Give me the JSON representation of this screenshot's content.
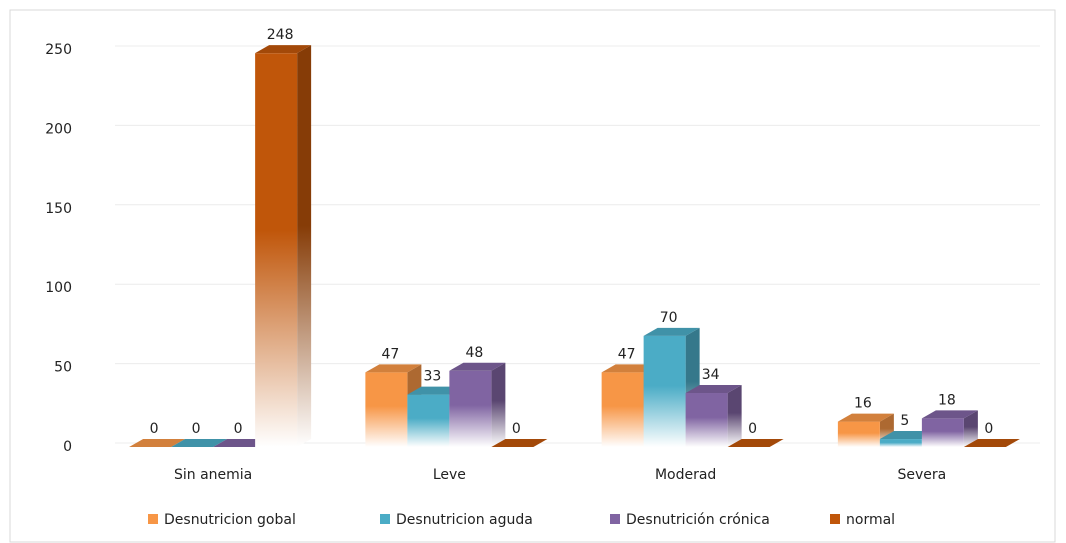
{
  "chart_data": {
    "type": "bar3d",
    "categories": [
      "Sin anemia",
      "Leve",
      "Moderad",
      "Severa"
    ],
    "series": [
      {
        "name": "Desnutricion gobal",
        "color": "#f79646",
        "values": [
          0,
          47,
          47,
          16
        ]
      },
      {
        "name": "Desnutricion aguda",
        "color": "#4bacc6",
        "values": [
          0,
          33,
          70,
          5
        ]
      },
      {
        "name": "Desnutrición crónica",
        "color": "#8064a2",
        "values": [
          0,
          48,
          34,
          18
        ]
      },
      {
        "name": "normal",
        "color": "#c0560a",
        "values": [
          248,
          0,
          0,
          0
        ]
      }
    ],
    "ylim": [
      0,
      250
    ],
    "yticks": [
      0,
      50,
      100,
      150,
      200,
      250
    ],
    "grid": true,
    "legend": "bottom"
  }
}
